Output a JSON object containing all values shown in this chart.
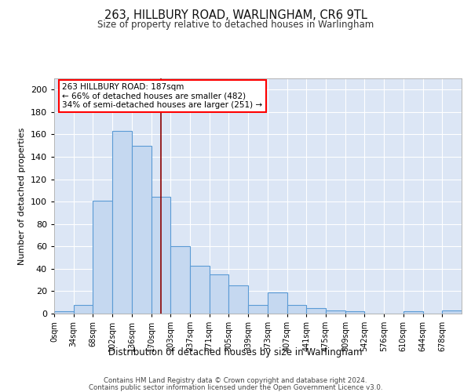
{
  "title1": "263, HILLBURY ROAD, WARLINGHAM, CR6 9TL",
  "title2": "Size of property relative to detached houses in Warlingham",
  "xlabel": "Distribution of detached houses by size in Warlingham",
  "ylabel": "Number of detached properties",
  "bin_labels": [
    "0sqm",
    "34sqm",
    "68sqm",
    "102sqm",
    "136sqm",
    "170sqm",
    "203sqm",
    "237sqm",
    "271sqm",
    "305sqm",
    "339sqm",
    "373sqm",
    "407sqm",
    "441sqm",
    "475sqm",
    "509sqm",
    "542sqm",
    "576sqm",
    "610sqm",
    "644sqm",
    "678sqm"
  ],
  "bar_values": [
    2,
    8,
    101,
    163,
    150,
    104,
    60,
    43,
    35,
    25,
    8,
    19,
    8,
    5,
    3,
    2,
    0,
    0,
    2,
    0,
    3
  ],
  "bar_color": "#c5d8f0",
  "bar_edge_color": "#5b9bd5",
  "background_color": "#dce6f5",
  "ylim": [
    0,
    210
  ],
  "yticks": [
    0,
    20,
    40,
    60,
    80,
    100,
    120,
    140,
    160,
    180,
    200
  ],
  "marker_value": 187,
  "bin_width": 34,
  "annotation_line1": "263 HILLBURY ROAD: 187sqm",
  "annotation_line2": "← 66% of detached houses are smaller (482)",
  "annotation_line3": "34% of semi-detached houses are larger (251) →",
  "footer1": "Contains HM Land Registry data © Crown copyright and database right 2024.",
  "footer2": "Contains public sector information licensed under the Open Government Licence v3.0."
}
